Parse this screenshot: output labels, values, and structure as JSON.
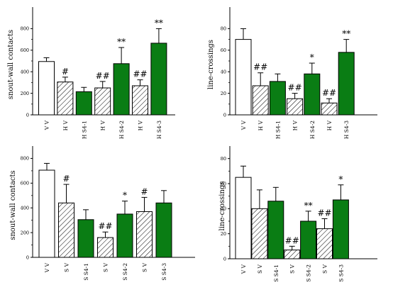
{
  "colors": {
    "hatch_fill": "#ffffff",
    "green": "#0a7d14",
    "open": "#ffffff",
    "stroke": "#000000"
  },
  "chart_data": [
    {
      "type": "bar",
      "ylabel": "snout-wall contacts",
      "ylim": [
        0,
        1000
      ],
      "yticks": [
        0,
        200,
        400,
        600,
        800
      ],
      "categories": [
        "V V",
        "H V",
        "H S4-1",
        "H V",
        "H S4-2",
        "H V",
        "H S4-3"
      ],
      "values": [
        495,
        305,
        215,
        250,
        475,
        270,
        665
      ],
      "errors": [
        35,
        45,
        40,
        60,
        150,
        55,
        135
      ],
      "styles": [
        "open",
        "hatch",
        "green",
        "hatch",
        "green",
        "hatch",
        "green"
      ],
      "annotations": [
        "",
        "#",
        "",
        "##",
        "**",
        "##",
        "**"
      ],
      "legend": "none",
      "grid": false
    },
    {
      "type": "bar",
      "ylabel": "line-crossings",
      "ylim": [
        0,
        100
      ],
      "yticks": [
        0,
        20,
        40,
        60,
        80
      ],
      "categories": [
        "V V",
        "H V",
        "H S4-1",
        "H V",
        "H S4-2",
        "H V",
        "H S4-3"
      ],
      "values": [
        70,
        27,
        31,
        15,
        38,
        11,
        58
      ],
      "errors": [
        10,
        12,
        7,
        5,
        10,
        4,
        12
      ],
      "styles": [
        "open",
        "hatch",
        "green",
        "hatch",
        "green",
        "hatch",
        "green"
      ],
      "annotations": [
        "",
        "##",
        "",
        "##",
        "*",
        "##",
        "**"
      ],
      "legend": "none",
      "grid": false
    },
    {
      "type": "bar",
      "ylabel": "snout-wall contacts",
      "ylim": [
        0,
        900
      ],
      "yticks": [
        0,
        200,
        400,
        600,
        800
      ],
      "categories": [
        "V V",
        "S V",
        "S S4-1",
        "S V",
        "S S4-2",
        "S V",
        "S S4-3"
      ],
      "values": [
        705,
        440,
        305,
        160,
        350,
        370,
        440
      ],
      "errors": [
        55,
        150,
        80,
        45,
        105,
        115,
        100
      ],
      "styles": [
        "open",
        "hatch",
        "green",
        "hatch",
        "green",
        "hatch",
        "green"
      ],
      "annotations": [
        "",
        "#",
        "",
        "##",
        "*",
        "#",
        ""
      ],
      "legend": "none",
      "grid": false
    },
    {
      "type": "bar",
      "ylabel": "line-crossings",
      "ylim": [
        0,
        90
      ],
      "yticks": [
        0,
        20,
        40,
        60,
        80
      ],
      "categories": [
        "V V",
        "S V",
        "S S4-1",
        "S V",
        "S S4-2",
        "S V",
        "S S4-3"
      ],
      "values": [
        65,
        40,
        46,
        7,
        30,
        24,
        47
      ],
      "errors": [
        9,
        15,
        11,
        3,
        8,
        8,
        12
      ],
      "styles": [
        "open",
        "hatch",
        "green",
        "hatch",
        "green",
        "hatch",
        "green"
      ],
      "annotations": [
        "",
        "",
        "",
        "##",
        "**",
        "##",
        "*"
      ],
      "legend": "none",
      "grid": false
    }
  ]
}
